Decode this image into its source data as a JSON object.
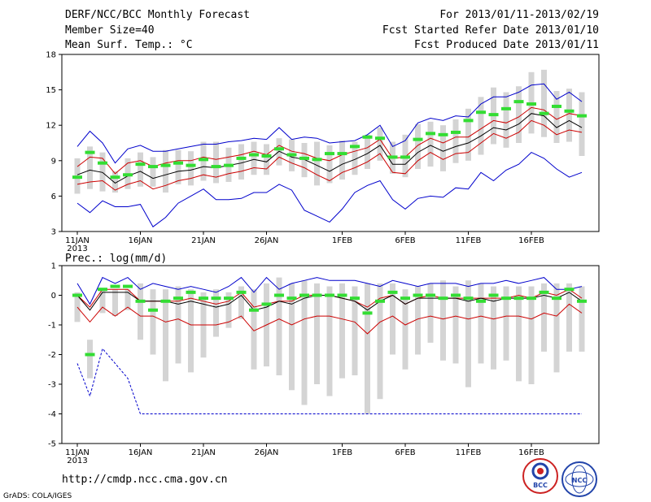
{
  "header": {
    "title": "DERF/NCC/BCC Monthly Forecast",
    "member_size": "Member Size=40",
    "variable": "Mean Surf. Temp.: °C",
    "forecast_period": "For 2013/01/11-2013/02/19",
    "fcst_started": "Fcst Started Refer Date 2013/01/10",
    "fcst_produced": "Fcst Produced Date 2013/01/11"
  },
  "footer": {
    "url": "http://cmdp.ncc.cma.gov.cn",
    "credit": "GrADS: COLA/IGES"
  },
  "logos": {
    "bcc": "BCC",
    "ncc": "NCC"
  },
  "colors": {
    "envelope": "#0000cc",
    "spread": "#cc0000",
    "mean": "#000000",
    "observed": "#33dd33",
    "box": "#d4d4d4"
  },
  "chart_data": [
    {
      "type": "line",
      "title": "Mean Surf. Temp.: °C",
      "ylim": [
        3,
        18
      ],
      "yticks": [
        3,
        6,
        9,
        12,
        15,
        18
      ],
      "xlim": [
        0,
        40
      ],
      "xtick_positions": [
        0,
        5,
        10,
        15,
        21,
        26,
        31,
        36
      ],
      "xtick_labels": [
        "11JAN",
        "16JAN",
        "21JAN",
        "26JAN",
        "1FEB",
        "6FEB",
        "11FEB",
        "16FEB"
      ],
      "year_label": "2013",
      "series": [
        {
          "name": "max",
          "color": "#0000cc",
          "values": [
            10.2,
            11.5,
            10.5,
            8.8,
            10.0,
            10.3,
            9.8,
            9.8,
            10.0,
            10.2,
            10.4,
            10.4,
            10.6,
            10.7,
            10.9,
            10.8,
            11.8,
            10.8,
            11.0,
            10.9,
            10.5,
            10.6,
            10.7,
            11.2,
            12.0,
            10.2,
            10.7,
            12.2,
            12.6,
            12.4,
            12.8,
            12.7,
            13.8,
            14.4,
            14.4,
            14.8,
            15.4,
            15.5,
            14.2,
            14.8,
            14.0
          ]
        },
        {
          "name": "p90",
          "color": "#cc0000",
          "values": [
            8.5,
            9.3,
            9.2,
            7.9,
            8.8,
            9.0,
            8.5,
            8.8,
            9.0,
            9.0,
            9.3,
            9.1,
            9.3,
            9.5,
            9.8,
            9.5,
            10.3,
            9.8,
            9.6,
            9.2,
            9.0,
            9.5,
            9.8,
            10.1,
            10.8,
            9.2,
            9.3,
            10.3,
            10.9,
            10.5,
            11.0,
            11.0,
            11.7,
            12.4,
            12.2,
            12.7,
            13.5,
            13.3,
            12.5,
            13.0,
            12.8
          ]
        },
        {
          "name": "mean",
          "color": "#000000",
          "values": [
            7.8,
            8.2,
            8.0,
            7.1,
            7.7,
            8.1,
            7.5,
            7.8,
            8.1,
            8.2,
            8.5,
            8.4,
            8.6,
            8.8,
            9.1,
            8.9,
            9.8,
            9.3,
            9.1,
            8.6,
            8.1,
            8.7,
            9.1,
            9.6,
            10.3,
            8.7,
            8.7,
            9.7,
            10.3,
            9.8,
            10.2,
            10.5,
            11.1,
            11.8,
            11.6,
            12.1,
            13.0,
            12.8,
            11.8,
            12.4,
            11.8
          ]
        },
        {
          "name": "p10",
          "color": "#cc0000",
          "values": [
            7.0,
            7.2,
            7.3,
            6.5,
            7.0,
            7.3,
            6.6,
            6.9,
            7.3,
            7.5,
            7.8,
            7.6,
            7.9,
            8.1,
            8.4,
            8.3,
            9.3,
            8.8,
            8.4,
            7.8,
            7.3,
            8.0,
            8.4,
            8.9,
            9.6,
            8.0,
            7.9,
            9.0,
            9.7,
            9.1,
            9.6,
            9.7,
            10.5,
            11.3,
            10.9,
            11.4,
            12.4,
            12.0,
            11.2,
            11.6,
            11.4
          ]
        },
        {
          "name": "min",
          "color": "#0000cc",
          "values": [
            5.4,
            4.6,
            5.6,
            5.1,
            5.1,
            5.3,
            3.4,
            4.2,
            5.4,
            6.0,
            6.6,
            5.7,
            5.7,
            5.8,
            6.3,
            6.3,
            7.0,
            6.5,
            4.8,
            4.3,
            3.8,
            4.9,
            6.3,
            6.9,
            7.3,
            5.7,
            4.9,
            5.8,
            6.0,
            5.9,
            6.7,
            6.6,
            8.0,
            7.3,
            8.2,
            8.7,
            9.7,
            9.2,
            8.3,
            7.6,
            8.0
          ]
        },
        {
          "name": "observed",
          "color": "#33dd33",
          "values": [
            7.6,
            9.7,
            8.8,
            7.6,
            7.8,
            8.7,
            8.5,
            8.6,
            8.8,
            8.6,
            9.1,
            8.5,
            8.6,
            9.2,
            9.5,
            9.4,
            10.0,
            9.5,
            9.2,
            9.1,
            9.6,
            9.6,
            10.2,
            11.0,
            10.9,
            9.3,
            9.3,
            10.8,
            11.3,
            11.2,
            11.4,
            12.4,
            13.1,
            12.9,
            13.4,
            14.0,
            13.8,
            13.0,
            13.6,
            13.2,
            12.8
          ]
        }
      ],
      "box_ranges": [
        [
          6.2,
          9.2
        ],
        [
          6.6,
          10.2
        ],
        [
          6.4,
          9.7
        ],
        [
          6.3,
          8.1
        ],
        [
          6.6,
          9.2
        ],
        [
          6.8,
          9.7
        ],
        [
          6.8,
          9.3
        ],
        [
          6.3,
          9.9
        ],
        [
          7.0,
          9.9
        ],
        [
          6.9,
          9.8
        ],
        [
          7.3,
          10.6
        ],
        [
          7.1,
          10.6
        ],
        [
          7.2,
          10.1
        ],
        [
          7.4,
          10.4
        ],
        [
          7.8,
          10.6
        ],
        [
          7.8,
          10.4
        ],
        [
          8.6,
          10.9
        ],
        [
          8.1,
          10.8
        ],
        [
          7.6,
          10.5
        ],
        [
          6.9,
          10.6
        ],
        [
          7.1,
          10.3
        ],
        [
          7.4,
          10.7
        ],
        [
          7.8,
          10.6
        ],
        [
          8.3,
          11.2
        ],
        [
          9.0,
          11.8
        ],
        [
          7.9,
          10.6
        ],
        [
          7.6,
          11.2
        ],
        [
          8.3,
          12.1
        ],
        [
          8.5,
          12.3
        ],
        [
          8.1,
          12.0
        ],
        [
          8.8,
          12.5
        ],
        [
          9.0,
          13.4
        ],
        [
          9.5,
          14.4
        ],
        [
          10.4,
          15.2
        ],
        [
          10.1,
          14.8
        ],
        [
          10.5,
          15.3
        ],
        [
          11.3,
          16.5
        ],
        [
          11.0,
          16.7
        ],
        [
          10.5,
          14.9
        ],
        [
          10.6,
          15.1
        ],
        [
          9.4,
          14.8
        ]
      ]
    },
    {
      "type": "line",
      "title": "Prec.: log(mm/d)",
      "ylim": [
        -5,
        1
      ],
      "yticks": [
        -5,
        -4,
        -3,
        -2,
        -1,
        0,
        1
      ],
      "xlim": [
        0,
        40
      ],
      "xtick_positions": [
        0,
        5,
        10,
        15,
        21,
        26,
        31,
        36
      ],
      "xtick_labels": [
        "11JAN",
        "16JAN",
        "21JAN",
        "26JAN",
        "1FEB",
        "6FEB",
        "11FEB",
        "16FEB"
      ],
      "year_label": "2013",
      "series": [
        {
          "name": "max",
          "color": "#0000cc",
          "values": [
            0.4,
            -0.3,
            0.6,
            0.4,
            0.6,
            0.2,
            0.4,
            0.3,
            0.2,
            0.3,
            0.2,
            0.1,
            0.3,
            0.6,
            0.1,
            0.6,
            0.2,
            0.4,
            0.5,
            0.6,
            0.5,
            0.5,
            0.5,
            0.4,
            0.3,
            0.5,
            0.4,
            0.3,
            0.4,
            0.4,
            0.4,
            0.3,
            0.4,
            0.4,
            0.5,
            0.4,
            0.5,
            0.6,
            0.2,
            0.2,
            0.3
          ]
        },
        {
          "name": "p90",
          "color": "#cc0000",
          "values": [
            0.0,
            -0.4,
            0.2,
            0.2,
            0.2,
            -0.2,
            -0.2,
            -0.2,
            -0.2,
            -0.1,
            -0.2,
            -0.3,
            -0.2,
            0.1,
            -0.4,
            -0.3,
            -0.2,
            -0.2,
            0.0,
            0.0,
            0.0,
            -0.1,
            -0.2,
            -0.4,
            -0.1,
            0.0,
            -0.3,
            -0.1,
            0.0,
            -0.1,
            -0.1,
            -0.1,
            -0.1,
            -0.1,
            -0.1,
            0.0,
            -0.1,
            0.1,
            0.0,
            0.2,
            -0.1
          ]
        },
        {
          "name": "mean",
          "color": "#000000",
          "values": [
            0.0,
            -0.5,
            0.1,
            0.1,
            0.1,
            -0.2,
            -0.2,
            -0.2,
            -0.3,
            -0.2,
            -0.3,
            -0.4,
            -0.3,
            0.0,
            -0.5,
            -0.4,
            -0.2,
            -0.3,
            -0.1,
            0.0,
            0.0,
            -0.1,
            -0.2,
            -0.5,
            -0.2,
            0.0,
            -0.3,
            -0.1,
            -0.1,
            -0.1,
            -0.1,
            -0.2,
            -0.1,
            -0.2,
            -0.1,
            -0.1,
            -0.1,
            0.0,
            -0.1,
            0.1,
            -0.2
          ]
        },
        {
          "name": "p10",
          "color": "#cc0000",
          "values": [
            -0.4,
            -0.9,
            -0.4,
            -0.7,
            -0.4,
            -0.7,
            -0.7,
            -0.9,
            -0.8,
            -1.0,
            -1.0,
            -1.0,
            -0.9,
            -0.7,
            -1.2,
            -1.0,
            -0.8,
            -1.0,
            -0.8,
            -0.7,
            -0.7,
            -0.8,
            -0.9,
            -1.3,
            -0.9,
            -0.7,
            -1.0,
            -0.8,
            -0.7,
            -0.8,
            -0.7,
            -0.8,
            -0.7,
            -0.8,
            -0.7,
            -0.7,
            -0.8,
            -0.6,
            -0.7,
            -0.3,
            -0.6
          ]
        },
        {
          "name": "min",
          "color": "#0000cc",
          "values": [
            -2.3,
            -3.4,
            -1.8,
            -2.3,
            -2.8,
            -4.0,
            -4.0,
            -4.0,
            -4.0,
            -4.0,
            -4.0,
            -4.0,
            -4.0,
            -4.0,
            -4.0,
            -4.0,
            -4.0,
            -4.0,
            -4.0,
            -4.0,
            -4.0,
            -4.0,
            -4.0,
            -4.0,
            -4.0,
            -4.0,
            -4.0,
            -4.0,
            -4.0,
            -4.0,
            -4.0,
            -4.0,
            -4.0,
            -4.0,
            -4.0,
            -4.0,
            -4.0,
            -4.0,
            -4.0,
            -4.0,
            -4.0
          ]
        },
        {
          "name": "observed",
          "color": "#33dd33",
          "values": [
            0.0,
            -2.0,
            0.2,
            0.3,
            0.3,
            -0.2,
            -0.5,
            -0.2,
            -0.1,
            0.1,
            -0.1,
            -0.1,
            -0.1,
            0.1,
            -0.5,
            -0.3,
            0.0,
            -0.1,
            0.0,
            0.0,
            0.0,
            0.0,
            -0.1,
            -0.6,
            -0.2,
            0.1,
            -0.1,
            0.0,
            0.0,
            -0.1,
            0.0,
            -0.1,
            -0.2,
            0.0,
            -0.1,
            -0.1,
            -0.1,
            0.1,
            -0.1,
            0.2,
            -0.2
          ]
        }
      ],
      "box_ranges": [
        [
          -0.9,
          0.1
        ],
        [
          -2.8,
          -1.5
        ],
        [
          -0.6,
          0.2
        ],
        [
          -0.7,
          0.2
        ],
        [
          -0.5,
          0.2
        ],
        [
          -1.5,
          0.4
        ],
        [
          -2.0,
          0.2
        ],
        [
          -2.9,
          0.2
        ],
        [
          -2.3,
          0.3
        ],
        [
          -2.6,
          0.2
        ],
        [
          -2.1,
          0.1
        ],
        [
          -1.4,
          0.2
        ],
        [
          -1.1,
          0.1
        ],
        [
          -0.8,
          0.3
        ],
        [
          -2.5,
          0.2
        ],
        [
          -2.4,
          0.4
        ],
        [
          -2.7,
          0.6
        ],
        [
          -3.2,
          0.4
        ],
        [
          -3.7,
          0.5
        ],
        [
          -3.0,
          0.4
        ],
        [
          -3.4,
          0.3
        ],
        [
          -2.8,
          0.4
        ],
        [
          -2.7,
          0.3
        ],
        [
          -4.0,
          0.4
        ],
        [
          -3.5,
          0.4
        ],
        [
          -2.0,
          0.4
        ],
        [
          -2.5,
          0.2
        ],
        [
          -2.0,
          0.3
        ],
        [
          -1.6,
          0.4
        ],
        [
          -2.2,
          0.5
        ],
        [
          -2.3,
          0.3
        ],
        [
          -3.1,
          0.5
        ],
        [
          -2.3,
          0.4
        ],
        [
          -2.5,
          0.3
        ],
        [
          -2.2,
          0.3
        ],
        [
          -2.9,
          0.3
        ],
        [
          -3.0,
          0.3
        ],
        [
          -1.9,
          0.4
        ],
        [
          -2.6,
          0.4
        ],
        [
          -1.9,
          0.4
        ],
        [
          -1.9,
          0.3
        ]
      ]
    }
  ]
}
